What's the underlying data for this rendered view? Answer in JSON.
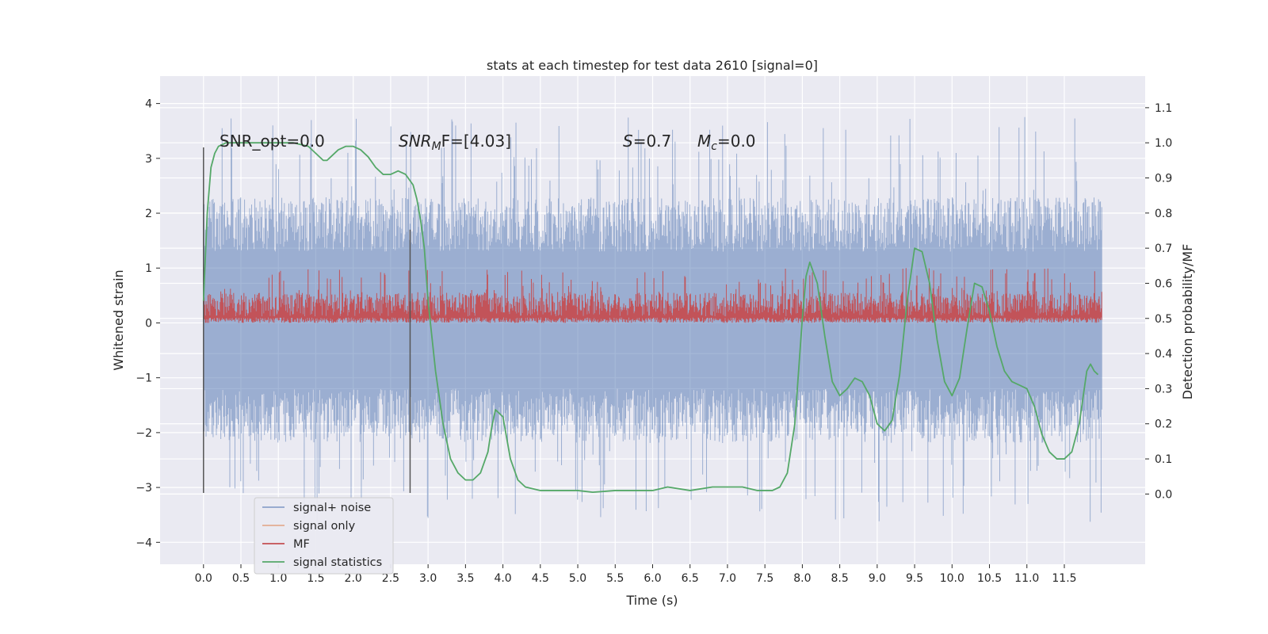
{
  "chart_data": {
    "type": "line",
    "title": "stats at each timestep for test data 2610 [signal=0]",
    "xlabel": "Time (s)",
    "ylabel_left": "Whitened strain",
    "ylabel_right": "Detection probability/MF",
    "xlim": [
      -0.58,
      12.58
    ],
    "ylim_left": [
      -4.4,
      4.5
    ],
    "ylim_right": [
      -0.2,
      1.19
    ],
    "x_ticks": [
      0.0,
      0.5,
      1.0,
      1.5,
      2.0,
      2.5,
      3.0,
      3.5,
      4.0,
      4.5,
      5.0,
      5.5,
      6.0,
      6.5,
      7.0,
      7.5,
      8.0,
      8.5,
      9.0,
      9.5,
      10.0,
      10.5,
      11.0,
      11.5
    ],
    "x_tick_labels": [
      "0.0",
      "0.5",
      "1.0",
      "1.5",
      "2.0",
      "2.5",
      "3.0",
      "3.5",
      "4.0",
      "4.5",
      "5.0",
      "5.5",
      "6.0",
      "6.5",
      "7.0",
      "7.5",
      "8.0",
      "8.5",
      "9.0",
      "9.5",
      "10.0",
      "10.5",
      "11.0",
      "11.5"
    ],
    "y_left_ticks": [
      4,
      3,
      2,
      1,
      0,
      -1,
      -2,
      -3,
      -4
    ],
    "y_left_tick_labels": [
      "4",
      "3",
      "2",
      "1",
      "0",
      "−1",
      "−2",
      "−3",
      "−4"
    ],
    "y_right_ticks": [
      1.1,
      1.0,
      0.9,
      0.8,
      0.7,
      0.6,
      0.5,
      0.4,
      0.3,
      0.2,
      0.1,
      0.0
    ],
    "y_right_tick_labels": [
      "1.1",
      "1.0",
      "0.9",
      "0.8",
      "0.7",
      "0.6",
      "0.5",
      "0.4",
      "0.3",
      "0.2",
      "0.1",
      "0.0"
    ],
    "grid": true,
    "legend_placement": "lower-left",
    "annotations": {
      "snr_opt": "SNR_opt=0.0",
      "snr_mf_label": "SNR",
      "snr_mf_sub": "M",
      "snr_mf_tail": "F=[4.03]",
      "s_label": "S",
      "s_value": "=0.7",
      "mc_label": "M",
      "mc_sub": "c",
      "mc_value": "=0.0"
    },
    "vlines": [
      {
        "x": 0.0,
        "ymin": -3.1,
        "ymax": 3.2
      },
      {
        "x": 2.76,
        "ymin": -3.1,
        "ymax": 1.7
      }
    ],
    "series": [
      {
        "name": "signal+ noise",
        "color": "#4c72b0",
        "axis": "left",
        "envelope": {
          "inner_lo": -1.2,
          "inner_hi": 1.3,
          "outer_lo": -2.3,
          "outer_hi": 2.4,
          "peak_lo": -3.9,
          "peak_hi": 4.1
        },
        "x_range": [
          0.0,
          12.0
        ]
      },
      {
        "name": "signal only",
        "color": "#dd8452",
        "axis": "left",
        "x": [],
        "y": []
      },
      {
        "name": "MF",
        "color": "#c44e52",
        "axis": "left",
        "envelope": {
          "lo": 0.0,
          "base_lo": 0.12,
          "base_hi": 0.55,
          "peak_hi": 1.0
        },
        "x_range": [
          0.0,
          12.0
        ]
      },
      {
        "name": "signal statistics",
        "color": "#55a868",
        "axis": "right",
        "x": [
          0.0,
          0.05,
          0.1,
          0.15,
          0.2,
          0.3,
          0.4,
          0.5,
          0.6,
          0.8,
          1.0,
          1.2,
          1.4,
          1.5,
          1.6,
          1.65,
          1.7,
          1.8,
          1.9,
          2.0,
          2.1,
          2.2,
          2.3,
          2.4,
          2.5,
          2.6,
          2.7,
          2.8,
          2.85,
          2.9,
          2.95,
          3.0,
          3.1,
          3.2,
          3.3,
          3.4,
          3.5,
          3.6,
          3.7,
          3.8,
          3.85,
          3.9,
          4.0,
          4.1,
          4.2,
          4.3,
          4.5,
          4.7,
          5.0,
          5.2,
          5.5,
          5.8,
          6.0,
          6.2,
          6.5,
          6.8,
          7.0,
          7.2,
          7.4,
          7.6,
          7.7,
          7.8,
          7.9,
          8.0,
          8.05,
          8.1,
          8.2,
          8.3,
          8.4,
          8.5,
          8.6,
          8.7,
          8.8,
          8.9,
          9.0,
          9.1,
          9.2,
          9.3,
          9.4,
          9.5,
          9.6,
          9.7,
          9.8,
          9.9,
          10.0,
          10.1,
          10.2,
          10.3,
          10.4,
          10.5,
          10.6,
          10.7,
          10.8,
          10.9,
          11.0,
          11.1,
          11.2,
          11.3,
          11.4,
          11.5,
          11.6,
          11.7,
          11.8,
          11.85,
          11.9,
          11.95
        ],
        "y": [
          0.55,
          0.8,
          0.93,
          0.97,
          0.99,
          1.0,
          1.0,
          1.0,
          1.0,
          1.0,
          1.0,
          1.0,
          0.99,
          0.97,
          0.95,
          0.95,
          0.96,
          0.98,
          0.99,
          0.99,
          0.98,
          0.96,
          0.93,
          0.91,
          0.91,
          0.92,
          0.91,
          0.88,
          0.84,
          0.78,
          0.7,
          0.55,
          0.35,
          0.2,
          0.1,
          0.06,
          0.04,
          0.04,
          0.06,
          0.12,
          0.19,
          0.24,
          0.22,
          0.1,
          0.04,
          0.02,
          0.01,
          0.01,
          0.01,
          0.005,
          0.01,
          0.01,
          0.01,
          0.02,
          0.01,
          0.02,
          0.02,
          0.02,
          0.01,
          0.01,
          0.02,
          0.06,
          0.2,
          0.5,
          0.62,
          0.66,
          0.6,
          0.45,
          0.32,
          0.28,
          0.3,
          0.33,
          0.32,
          0.28,
          0.2,
          0.18,
          0.21,
          0.34,
          0.55,
          0.7,
          0.69,
          0.6,
          0.44,
          0.32,
          0.28,
          0.33,
          0.47,
          0.6,
          0.59,
          0.52,
          0.42,
          0.35,
          0.32,
          0.31,
          0.3,
          0.25,
          0.17,
          0.12,
          0.1,
          0.1,
          0.12,
          0.2,
          0.35,
          0.37,
          0.35,
          0.34
        ]
      }
    ]
  }
}
